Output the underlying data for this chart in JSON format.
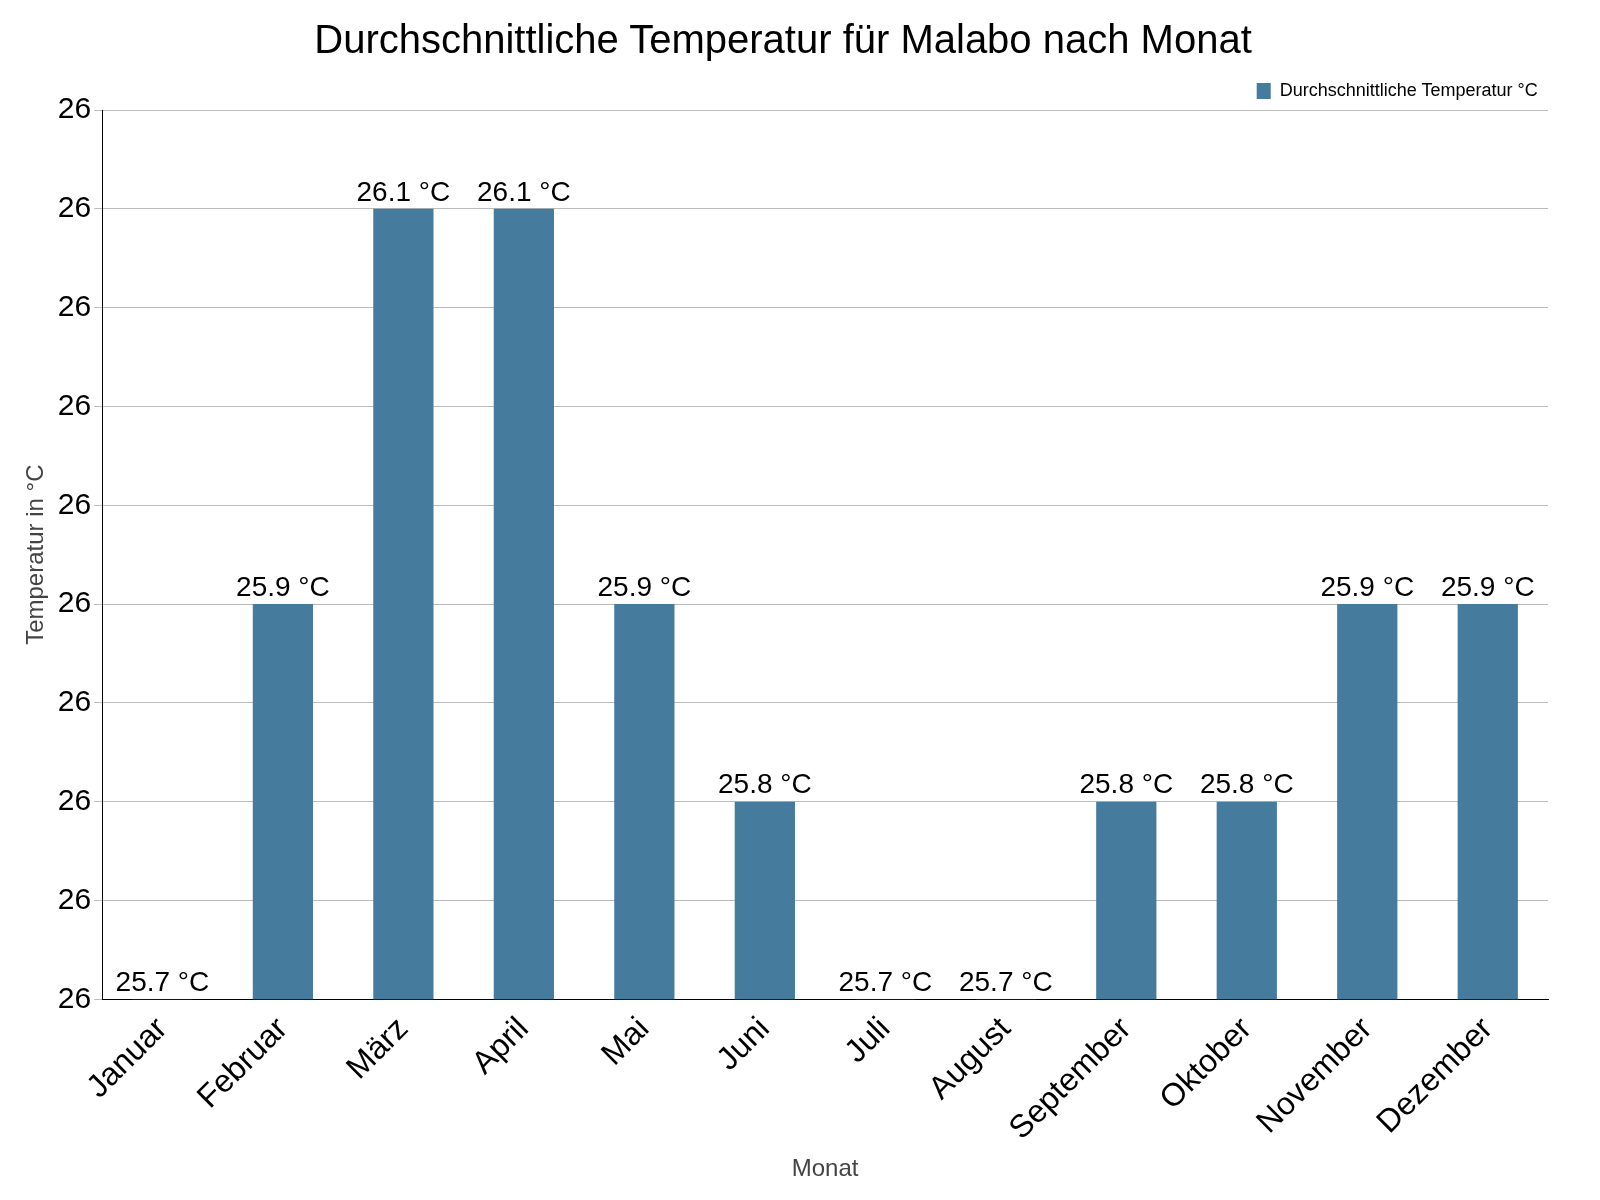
{
  "chart_data": {
    "type": "bar",
    "title": "Durchschnittliche Temperatur für Malabo nach Monat",
    "xlabel": "Monat",
    "ylabel": "Temperatur in °C",
    "categories": [
      "Januar",
      "Februar",
      "März",
      "April",
      "Mai",
      "Juni",
      "Juli",
      "August",
      "September",
      "Oktober",
      "November",
      "Dezember"
    ],
    "series": [
      {
        "name": "Durchschnittliche Temperatur °C",
        "color": "#457b9d",
        "values": [
          25.7,
          25.9,
          26.1,
          26.1,
          25.9,
          25.8,
          25.7,
          25.7,
          25.8,
          25.8,
          25.9,
          25.9
        ],
        "value_labels": [
          "25.7 °C",
          "25.9 °C",
          "26.1 °C",
          "26.1 °C",
          "25.9 °C",
          "25.8 °C",
          "25.7 °C",
          "25.7 °C",
          "25.8 °C",
          "25.8 °C",
          "25.9 °C",
          "25.9 °C"
        ]
      }
    ],
    "ylim": [
      25.7,
      26.15
    ],
    "yticks": [
      {
        "value": 25.7,
        "label": "26"
      },
      {
        "value": 25.75,
        "label": "26"
      },
      {
        "value": 25.8,
        "label": "26"
      },
      {
        "value": 25.85,
        "label": "26"
      },
      {
        "value": 25.9,
        "label": "26"
      },
      {
        "value": 25.95,
        "label": "26"
      },
      {
        "value": 26.0,
        "label": "26"
      },
      {
        "value": 26.05,
        "label": "26"
      },
      {
        "value": 26.1,
        "label": "26"
      },
      {
        "value": 26.15,
        "label": "26"
      }
    ],
    "grid": "y",
    "legend": "top right"
  }
}
